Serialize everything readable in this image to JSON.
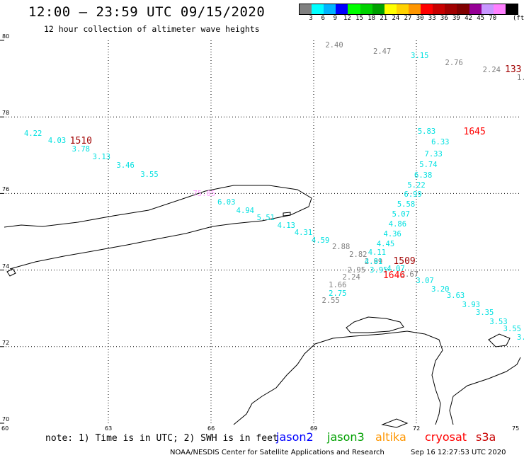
{
  "header": {
    "title": "12:00 – 23:59 UTC 09/15/2020",
    "subtitle": "12 hour collection of altimeter wave heights"
  },
  "legend": {
    "colors": [
      "#808080",
      "#00ffff",
      "#00b4ff",
      "#0000ff",
      "#00ff00",
      "#00d200",
      "#00a000",
      "#ffff00",
      "#ffd200",
      "#ff9600",
      "#ff0000",
      "#c80000",
      "#a00000",
      "#800000",
      "#960096",
      "#c896ff",
      "#ff80ff",
      "#000000"
    ],
    "labels": [
      "3",
      "6",
      "9",
      "12",
      "15",
      "18",
      "21",
      "24",
      "27",
      "30",
      "33",
      "36",
      "39",
      "42",
      "45",
      "70"
    ],
    "unit": "(ft)"
  },
  "axes": {
    "lat_labels": [
      {
        "value": 80,
        "text": "80"
      },
      {
        "value": 78,
        "text": "78"
      },
      {
        "value": 76,
        "text": "76"
      },
      {
        "value": 74,
        "text": "74"
      },
      {
        "value": 72,
        "text": "72"
      },
      {
        "value": 70,
        "text": "70"
      }
    ],
    "lon_labels": [
      {
        "value": 60,
        "text": "60"
      },
      {
        "value": 63,
        "text": "63"
      },
      {
        "value": 66,
        "text": "66"
      },
      {
        "value": 69,
        "text": "69"
      },
      {
        "value": 72,
        "text": "72"
      },
      {
        "value": 75,
        "text": "75"
      }
    ]
  },
  "observations": [
    {
      "lon": 69.6,
      "lat": 79.86,
      "text": "2.40",
      "color": "#808080"
    },
    {
      "lon": 71.0,
      "lat": 79.69,
      "text": "2.47",
      "color": "#808080"
    },
    {
      "lon": 72.1,
      "lat": 79.57,
      "text": "3.15",
      "color": "#00e0e0"
    },
    {
      "lon": 73.1,
      "lat": 79.39,
      "text": "2.76",
      "color": "#808080"
    },
    {
      "lon": 74.2,
      "lat": 79.21,
      "text": "2.24",
      "color": "#808080"
    },
    {
      "lon": 75.0,
      "lat": 79.0,
      "text": "1.",
      "color": "#808080"
    },
    {
      "lon": 60.8,
      "lat": 77.55,
      "text": "4.22",
      "color": "#00e0e0"
    },
    {
      "lon": 61.5,
      "lat": 77.36,
      "text": "4.03",
      "color": "#00e0e0"
    },
    {
      "lon": 62.2,
      "lat": 77.14,
      "text": "3.78",
      "color": "#00e0e0"
    },
    {
      "lon": 62.8,
      "lat": 76.93,
      "text": "3.13",
      "color": "#00e0e0"
    },
    {
      "lon": 63.5,
      "lat": 76.71,
      "text": "3.46",
      "color": "#00e0e0"
    },
    {
      "lon": 64.2,
      "lat": 76.47,
      "text": "3.55",
      "color": "#00e0e0"
    },
    {
      "lon": 65.8,
      "lat": 75.97,
      "text": "75.05",
      "color": "#ff99ff"
    },
    {
      "lon": 66.45,
      "lat": 75.74,
      "text": "6.03",
      "color": "#00e0e0"
    },
    {
      "lon": 67.0,
      "lat": 75.53,
      "text": "4.94",
      "color": "#00e0e0"
    },
    {
      "lon": 67.6,
      "lat": 75.34,
      "text": "5.51",
      "color": "#00e0e0"
    },
    {
      "lon": 68.2,
      "lat": 75.13,
      "text": "4.13",
      "color": "#00e0e0"
    },
    {
      "lon": 68.7,
      "lat": 74.95,
      "text": "4.31",
      "color": "#00e0e0"
    },
    {
      "lon": 69.2,
      "lat": 74.75,
      "text": "4.59",
      "color": "#00e0e0"
    },
    {
      "lon": 69.8,
      "lat": 74.59,
      "text": "2.88",
      "color": "#808080"
    },
    {
      "lon": 70.3,
      "lat": 74.39,
      "text": "2.82",
      "color": "#808080"
    },
    {
      "lon": 70.75,
      "lat": 74.2,
      "text": "2.89",
      "color": "#808080"
    },
    {
      "lon": 70.25,
      "lat": 73.98,
      "text": "2.95",
      "color": "#808080"
    },
    {
      "lon": 70.1,
      "lat": 73.79,
      "text": "2.24",
      "color": "#808080"
    },
    {
      "lon": 69.7,
      "lat": 73.58,
      "text": "1.66",
      "color": "#808080"
    },
    {
      "lon": 69.7,
      "lat": 73.37,
      "text": "2.75",
      "color": "#00e0e0"
    },
    {
      "lon": 69.5,
      "lat": 73.18,
      "text": "2.55",
      "color": "#808080"
    },
    {
      "lon": 72.3,
      "lat": 77.6,
      "text": "5.83",
      "color": "#00e0e0"
    },
    {
      "lon": 72.7,
      "lat": 77.32,
      "text": "6.33",
      "color": "#00e0e0"
    },
    {
      "lon": 72.5,
      "lat": 77.0,
      "text": "7.33",
      "color": "#00e0e0"
    },
    {
      "lon": 72.35,
      "lat": 76.72,
      "text": "5.74",
      "color": "#00e0e0"
    },
    {
      "lon": 72.2,
      "lat": 76.46,
      "text": "6.38",
      "color": "#00e0e0"
    },
    {
      "lon": 72.0,
      "lat": 76.2,
      "text": "5.22",
      "color": "#00e0e0"
    },
    {
      "lon": 71.9,
      "lat": 75.95,
      "text": "6.99",
      "color": "#00e0e0"
    },
    {
      "lon": 71.7,
      "lat": 75.7,
      "text": "5.58",
      "color": "#00e0e0"
    },
    {
      "lon": 71.55,
      "lat": 75.43,
      "text": "5.07",
      "color": "#00e0e0"
    },
    {
      "lon": 71.45,
      "lat": 75.18,
      "text": "4.86",
      "color": "#00e0e0"
    },
    {
      "lon": 71.3,
      "lat": 74.91,
      "text": "4.36",
      "color": "#00e0e0"
    },
    {
      "lon": 71.1,
      "lat": 74.66,
      "text": "4.45",
      "color": "#00e0e0"
    },
    {
      "lon": 70.85,
      "lat": 74.43,
      "text": "4.11",
      "color": "#00e0e0"
    },
    {
      "lon": 70.75,
      "lat": 74.19,
      "text": "4.91",
      "color": "#00e0e0"
    },
    {
      "lon": 70.9,
      "lat": 73.97,
      "text": "3.95",
      "color": "#00e0e0"
    },
    {
      "lon": 71.4,
      "lat": 74.01,
      "text": "4.07",
      "color": "#00e0e0"
    },
    {
      "lon": 71.8,
      "lat": 73.87,
      "text": "3.67",
      "color": "#808080"
    },
    {
      "lon": 72.25,
      "lat": 73.7,
      "text": "3.07",
      "color": "#00e0e0"
    },
    {
      "lon": 72.7,
      "lat": 73.47,
      "text": "3.20",
      "color": "#00e0e0"
    },
    {
      "lon": 73.15,
      "lat": 73.3,
      "text": "3.63",
      "color": "#00e0e0"
    },
    {
      "lon": 73.6,
      "lat": 73.07,
      "text": "3.93",
      "color": "#00e0e0"
    },
    {
      "lon": 74.0,
      "lat": 72.86,
      "text": "3.35",
      "color": "#00e0e0"
    },
    {
      "lon": 74.4,
      "lat": 72.62,
      "text": "3.53",
      "color": "#00e0e0"
    },
    {
      "lon": 74.8,
      "lat": 72.44,
      "text": "3.55",
      "color": "#00e0e0"
    },
    {
      "lon": 75.0,
      "lat": 72.21,
      "text": "3.",
      "color": "#00e0e0"
    }
  ],
  "time_labels": [
    {
      "lon": 75.0,
      "lat": 79.22,
      "text": "133",
      "color": "#a00000"
    },
    {
      "lon": 62.2,
      "lat": 77.36,
      "text": "1510",
      "color": "#a00000"
    },
    {
      "lon": 73.7,
      "lat": 77.6,
      "text": "1645",
      "color": "#ff0000"
    },
    {
      "lon": 71.65,
      "lat": 74.22,
      "text": "1509",
      "color": "#a00000"
    },
    {
      "lon": 71.35,
      "lat": 73.84,
      "text": "1646",
      "color": "#ff0000"
    }
  ],
  "footer": {
    "note": "note: 1) Time is in UTC; 2) SWH is in feet",
    "satellites": [
      {
        "name": "jason2",
        "color": "#0000ff"
      },
      {
        "name": "jason3",
        "color": "#00a000"
      },
      {
        "name": "altika",
        "color": "#ff9600"
      },
      {
        "name": "cryosat",
        "color": "#ff0000"
      },
      {
        "name": "s3a",
        "color": "#c80000"
      }
    ],
    "credit": "NOAA/NESDIS Center for Satellite Applications and Research",
    "timestamp": "Sep 16 12:27:53 UTC 2020"
  }
}
